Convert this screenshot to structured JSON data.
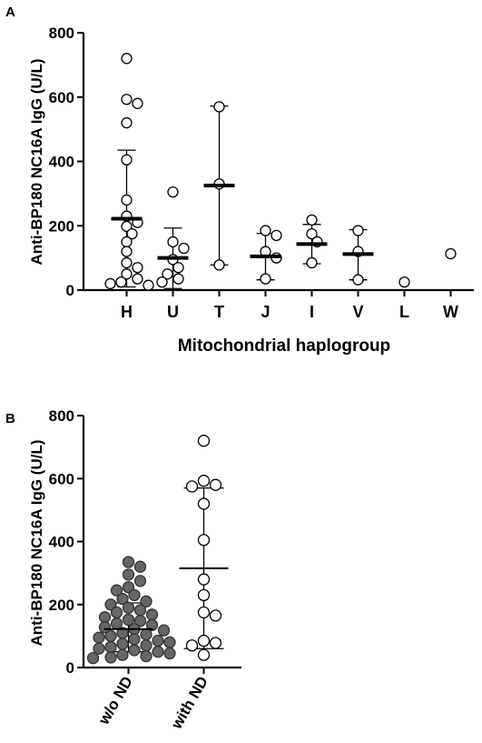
{
  "chart_data": [
    {
      "panel_label": "A",
      "type": "scatter",
      "ylabel": "Anti-BP180 NC16A IgG (U/L)",
      "xlabel": "Mitochondrial haplogroup",
      "ylim": [
        0,
        800
      ],
      "yticks": [
        "0",
        "200",
        "400",
        "600",
        "800"
      ],
      "categories": [
        "H",
        "U",
        "T",
        "J",
        "I",
        "V",
        "L",
        "W"
      ],
      "series": [
        {
          "category": "H",
          "mean": 222,
          "sd_low": 10,
          "sd_high": 435,
          "values": [
            720,
            593,
            580,
            520,
            405,
            280,
            230,
            210,
            198,
            175,
            150,
            120,
            85,
            70,
            50,
            35,
            25,
            20,
            15
          ]
        },
        {
          "category": "U",
          "mean": 100,
          "sd_low": 5,
          "sd_high": 193,
          "values": [
            305,
            150,
            130,
            95,
            70,
            50,
            35,
            25
          ]
        },
        {
          "category": "T",
          "mean": 325,
          "sd_low": 78,
          "sd_high": 572,
          "values": [
            570,
            330,
            78
          ]
        },
        {
          "category": "J",
          "mean": 105,
          "sd_low": 32,
          "sd_high": 176,
          "values": [
            185,
            170,
            120,
            100,
            35
          ]
        },
        {
          "category": "I",
          "mean": 143,
          "sd_low": 82,
          "sd_high": 204,
          "values": [
            218,
            175,
            150,
            85
          ]
        },
        {
          "category": "V",
          "mean": 112,
          "sd_low": 32,
          "sd_high": 188,
          "values": [
            185,
            120,
            32
          ]
        },
        {
          "category": "L",
          "mean": null,
          "sd_low": null,
          "sd_high": null,
          "values": [
            25
          ]
        },
        {
          "category": "W",
          "mean": null,
          "sd_low": null,
          "sd_high": null,
          "values": [
            113
          ]
        }
      ],
      "marker": "open-circle",
      "grid": false
    },
    {
      "panel_label": "B",
      "type": "scatter",
      "ylabel": "Anti-BP180 NC16A IgG (U/L)",
      "xlabel": "",
      "ylim": [
        0,
        800
      ],
      "yticks": [
        "0",
        "200",
        "400",
        "600",
        "800"
      ],
      "categories": [
        "w/o ND",
        "with ND"
      ],
      "series": [
        {
          "category": "w/o ND",
          "mean": 122,
          "sd_low": 50,
          "sd_high": 205,
          "marker": "filled-circle",
          "color": "#666666",
          "values": [
            335,
            320,
            295,
            275,
            255,
            245,
            230,
            218,
            210,
            200,
            190,
            182,
            175,
            168,
            160,
            152,
            148,
            140,
            135,
            128,
            122,
            118,
            110,
            105,
            100,
            95,
            90,
            85,
            80,
            75,
            70,
            65,
            60,
            55,
            50,
            45,
            40,
            36,
            32,
            30
          ]
        },
        {
          "category": "with ND",
          "mean": 315,
          "sd_low": 60,
          "sd_high": 570,
          "marker": "open-circle",
          "color": "#ffffff",
          "values": [
            720,
            593,
            580,
            575,
            520,
            405,
            280,
            230,
            175,
            165,
            85,
            78,
            70,
            40
          ]
        }
      ],
      "grid": false
    }
  ]
}
